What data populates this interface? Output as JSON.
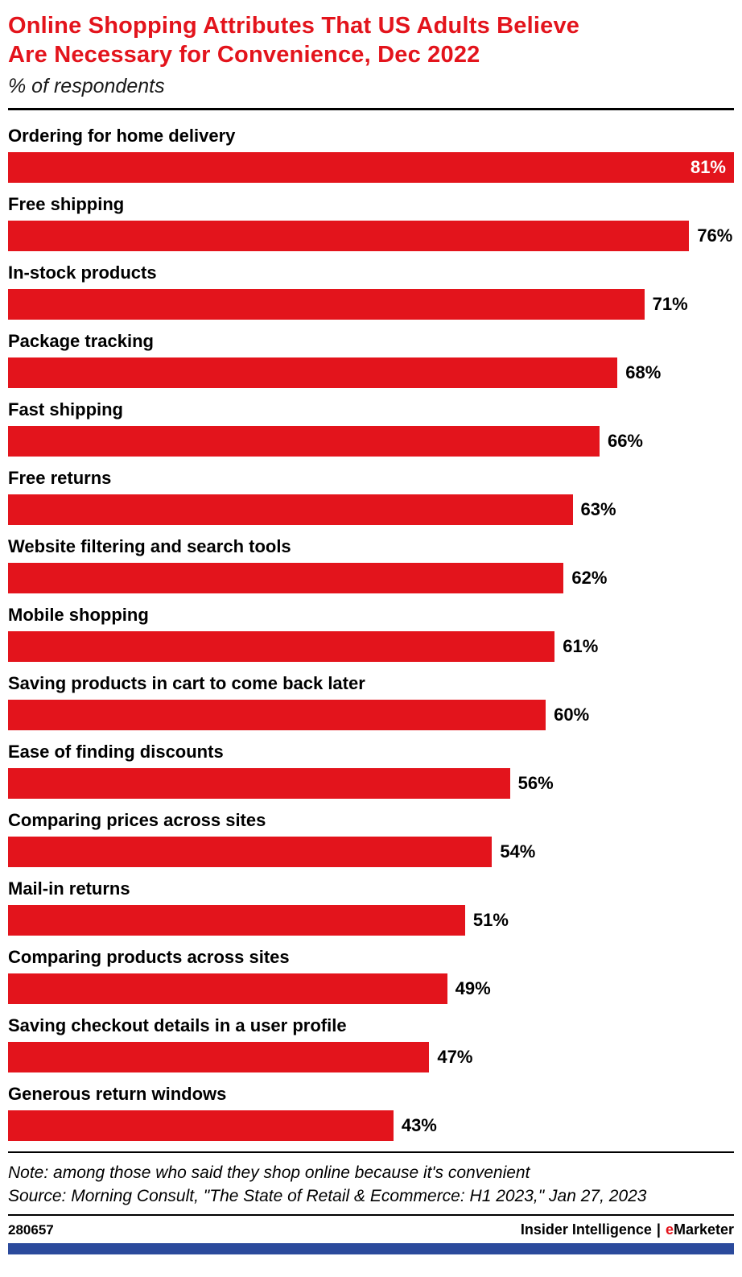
{
  "header": {
    "title_line1": "Online Shopping Attributes That US Adults Believe",
    "title_line2": "Are Necessary for Convenience, Dec 2022",
    "subtitle": "% of respondents"
  },
  "chart_data": {
    "type": "bar",
    "orientation": "horizontal",
    "unit": "%",
    "title": "Online Shopping Attributes That US Adults Believe Are Necessary for Convenience, Dec 2022",
    "ylabel": "",
    "xlabel": "% of respondents",
    "xlim": [
      0,
      81
    ],
    "grid": false,
    "legend": "none",
    "bar_color": "#e3141c",
    "categories": [
      "Ordering for home delivery",
      "Free shipping",
      "In-stock products",
      "Package tracking",
      "Fast shipping",
      "Free returns",
      "Website filtering and search tools",
      "Mobile shopping",
      "Saving products in cart to come back later",
      "Ease of finding discounts",
      "Comparing prices across sites",
      "Mail-in returns",
      "Comparing products across sites",
      "Saving checkout details in a user profile",
      "Generous return windows"
    ],
    "values": [
      81,
      76,
      71,
      68,
      66,
      63,
      62,
      61,
      60,
      56,
      54,
      51,
      49,
      47,
      43
    ]
  },
  "notes": {
    "note": "Note: among those who said they shop online because it's convenient",
    "source": "Source: Morning Consult, \"The State of Retail & Ecommerce: H1 2023,\" Jan 27, 2023"
  },
  "footer": {
    "chart_id": "280657",
    "brand_left": "Insider Intelligence",
    "separator": "|",
    "brand_e": "e",
    "brand_rest": "Marketer"
  },
  "colors": {
    "accent_red": "#e3141c",
    "footer_blue": "#2b4a9c",
    "text": "#000000"
  }
}
